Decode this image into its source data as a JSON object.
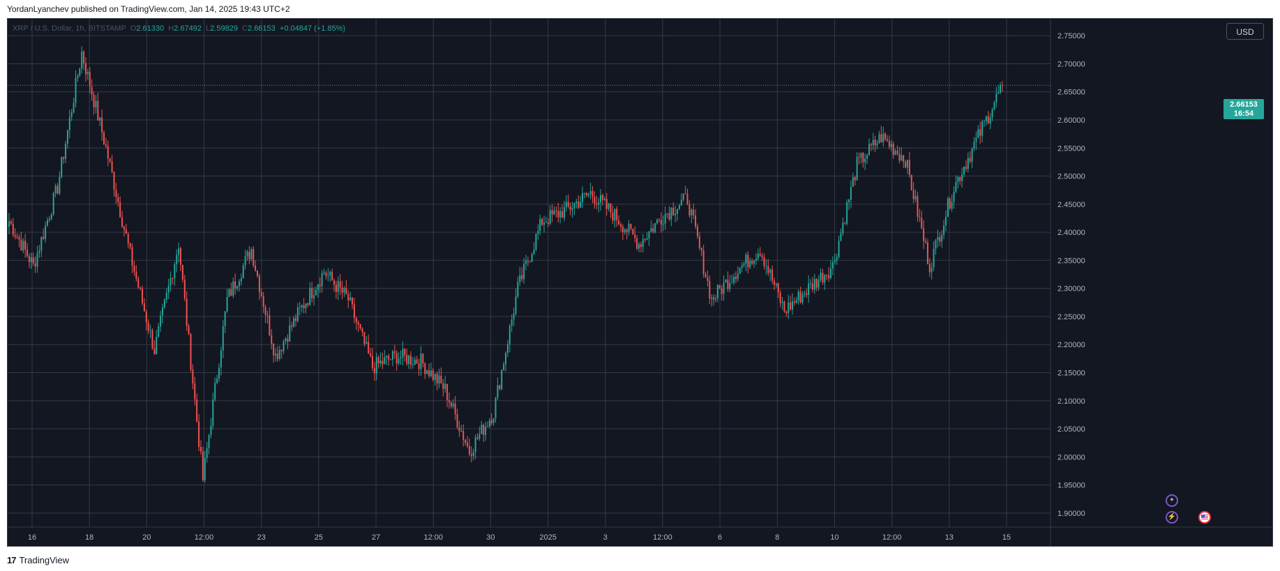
{
  "header": {
    "published_line": "YordanLyanchev published on TradingView.com, Jan 14, 2025 19:43 UTC+2"
  },
  "legend": {
    "symbol": "XRP / U.S. Dollar, 1h, BITSTAMP",
    "o_label": "O",
    "o_value": "2.61330",
    "h_label": "H",
    "h_value": "2.67492",
    "l_label": "L",
    "l_value": "2.59829",
    "c_label": "C",
    "c_value": "2.66153",
    "change": "+0.04847 (+1.85%)"
  },
  "currency_button": "USD",
  "last_price": {
    "price": "2.66153",
    "countdown": "16:54"
  },
  "footer": {
    "brand": "TradingView",
    "logo_glyph": "17"
  },
  "event_icons": [
    "sparkle-event-icon",
    "lightning-event-icon",
    "us-flag-event-icon"
  ],
  "colors": {
    "background": "#131722",
    "grid": "#363a45",
    "up": "#26a69a",
    "down": "#ef5350",
    "axis_text": "#b2b5be"
  },
  "chart_data": {
    "type": "candlestick",
    "title": "XRP / U.S. Dollar, 1h, BITSTAMP",
    "ylim": [
      1.88,
      2.78
    ],
    "y_ticks": [
      "2.75000",
      "2.70000",
      "2.65000",
      "2.60000",
      "2.55000",
      "2.50000",
      "2.45000",
      "2.40000",
      "2.35000",
      "2.30000",
      "2.25000",
      "2.20000",
      "2.15000",
      "2.10000",
      "2.05000",
      "2.00000",
      "1.95000",
      "1.90000"
    ],
    "x_ticks": [
      "16",
      "18",
      "20",
      "12:00",
      "23",
      "25",
      "27",
      "12:00",
      "30",
      "2025",
      "3",
      "12:00",
      "6",
      "8",
      "10",
      "12:00",
      "13",
      "15"
    ],
    "grid": true,
    "key_points": [
      {
        "t": "Dec 16",
        "close": 2.42
      },
      {
        "t": "Dec 16 12:00",
        "close": 2.34
      },
      {
        "t": "Dec 17",
        "close": 2.48
      },
      {
        "t": "Dec 17 10:00",
        "close": 2.72
      },
      {
        "t": "Dec 18",
        "close": 2.55
      },
      {
        "t": "Dec 19",
        "close": 2.36
      },
      {
        "t": "Dec 19 12:00",
        "close": 2.19
      },
      {
        "t": "Dec 20",
        "close": 2.38
      },
      {
        "t": "Dec 20 18:00",
        "close": 1.96
      },
      {
        "t": "Dec 21",
        "close": 2.28
      },
      {
        "t": "Dec 22",
        "close": 2.37
      },
      {
        "t": "Dec 23",
        "close": 2.18
      },
      {
        "t": "Dec 24",
        "close": 2.26
      },
      {
        "t": "Dec 25",
        "close": 2.33
      },
      {
        "t": "Dec 26",
        "close": 2.28
      },
      {
        "t": "Dec 27",
        "close": 2.16
      },
      {
        "t": "Dec 28",
        "close": 2.18
      },
      {
        "t": "Dec 29",
        "close": 2.17
      },
      {
        "t": "Dec 30",
        "close": 2.12
      },
      {
        "t": "Dec 31",
        "close": 2.01
      },
      {
        "t": "Jan 1",
        "close": 2.08
      },
      {
        "t": "Jan 2",
        "close": 2.3
      },
      {
        "t": "Jan 2 12:00",
        "close": 2.42
      },
      {
        "t": "Jan 3",
        "close": 2.44
      },
      {
        "t": "Jan 4",
        "close": 2.47
      },
      {
        "t": "Jan 5",
        "close": 2.43
      },
      {
        "t": "Jan 6",
        "close": 2.38
      },
      {
        "t": "Jan 7",
        "close": 2.43
      },
      {
        "t": "Jan 7 12:00",
        "close": 2.46
      },
      {
        "t": "Jan 8",
        "close": 2.28
      },
      {
        "t": "Jan 9",
        "close": 2.33
      },
      {
        "t": "Jan 9 12:00",
        "close": 2.37
      },
      {
        "t": "Jan 10",
        "close": 2.26
      },
      {
        "t": "Jan 11",
        "close": 2.3
      },
      {
        "t": "Jan 11 12:00",
        "close": 2.34
      },
      {
        "t": "Jan 12",
        "close": 2.52
      },
      {
        "t": "Jan 12 06:00",
        "close": 2.57
      },
      {
        "t": "Jan 13",
        "close": 2.53
      },
      {
        "t": "Jan 13 12:00",
        "close": 2.34
      },
      {
        "t": "Jan 14",
        "close": 2.48
      },
      {
        "t": "Jan 14 12:00",
        "close": 2.57
      },
      {
        "t": "Jan 14 19:00",
        "close": 2.66153
      }
    ],
    "last_price": 2.66153
  }
}
